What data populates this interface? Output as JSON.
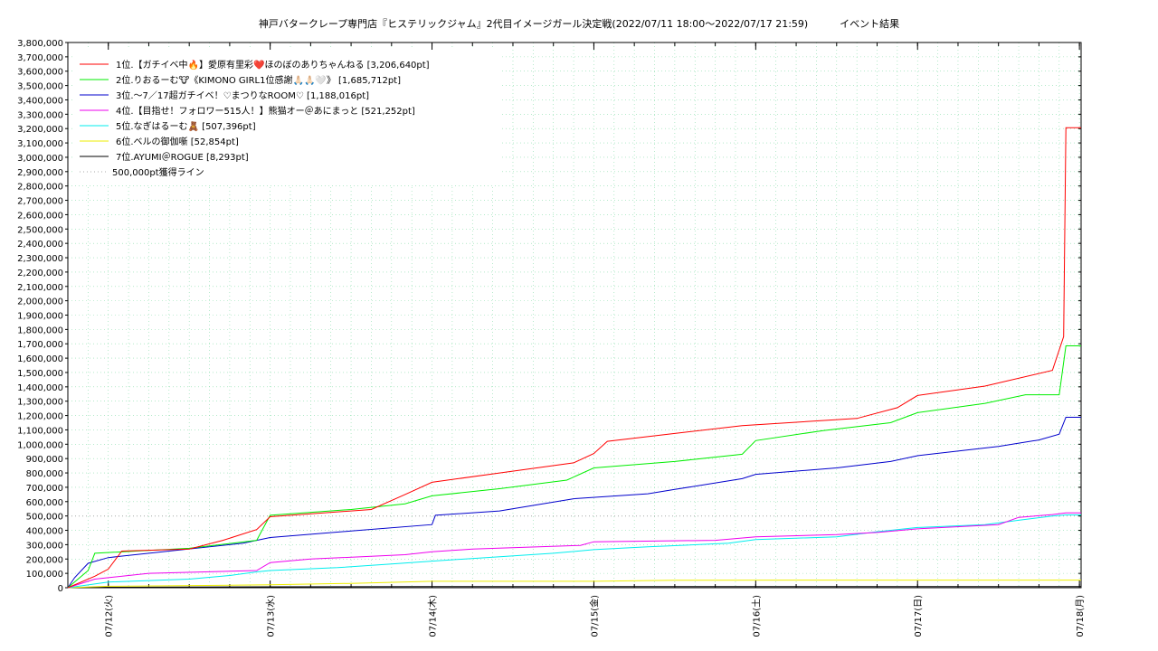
{
  "chart_data": {
    "type": "line",
    "title": "神戸バタークレープ専門店『ヒステリックジャム』2代目イメージガール決定戦(2022/07/11 18:00～2022/07/17 21:59)          イベント結果",
    "xlabel": "",
    "ylabel": "",
    "x_range": [
      "2022/07/11 18:00",
      "2022/07/18 00:15"
    ],
    "ylim": [
      0,
      3800000
    ],
    "yticks": [
      0,
      100000,
      200000,
      300000,
      400000,
      500000,
      600000,
      700000,
      800000,
      900000,
      1000000,
      1100000,
      1200000,
      1300000,
      1400000,
      1500000,
      1600000,
      1700000,
      1800000,
      1900000,
      2000000,
      2100000,
      2200000,
      2300000,
      2400000,
      2500000,
      2600000,
      2700000,
      2800000,
      2900000,
      3000000,
      3100000,
      3200000,
      3300000,
      3400000,
      3500000,
      3600000,
      3700000,
      3800000
    ],
    "ytick_labels": [
      "0",
      "100,000",
      "200,000",
      "300,000",
      "400,000",
      "500,000",
      "600,000",
      "700,000",
      "800,000",
      "900,000",
      "1,000,000",
      "1,100,000",
      "1,200,000",
      "1,300,000",
      "1,400,000",
      "1,500,000",
      "1,600,000",
      "1,700,000",
      "1,800,000",
      "1,900,000",
      "2,000,000",
      "2,100,000",
      "2,200,000",
      "2,300,000",
      "2,400,000",
      "2,500,000",
      "2,600,000",
      "2,700,000",
      "2,800,000",
      "2,900,000",
      "3,000,000",
      "3,100,000",
      "3,200,000",
      "3,300,000",
      "3,400,000",
      "3,500,000",
      "3,600,000",
      "3,700,000",
      "3,800,000"
    ],
    "xticks": [
      "2022/07/12 00:00",
      "2022/07/13 00:00",
      "2022/07/14 00:00",
      "2022/07/15 00:00",
      "2022/07/16 00:00",
      "2022/07/17 00:00",
      "2022/07/18 00:00"
    ],
    "xtick_labels": [
      "07/12(火)",
      "07/13(水)",
      "07/14(木)",
      "07/15(金)",
      "07/16(土)",
      "07/17(日)",
      "07/18(月)"
    ],
    "grid": true,
    "legend_position": "top-left",
    "series": [
      {
        "name": "1位.【ガチイベ中🔥】愛原有里彩❤️ほのぼのありちゃんねる [3,206,640pt]",
        "color": "#ff0000",
        "points": [
          [
            "2022/07/11 18:00",
            0
          ],
          [
            "2022/07/11 22:00",
            80000
          ],
          [
            "2022/07/12 00:00",
            130000
          ],
          [
            "2022/07/12 02:00",
            255000
          ],
          [
            "2022/07/12 12:00",
            270000
          ],
          [
            "2022/07/12 17:00",
            330000
          ],
          [
            "2022/07/12 22:00",
            405000
          ],
          [
            "2022/07/13 00:00",
            495000
          ],
          [
            "2022/07/13 15:00",
            545000
          ],
          [
            "2022/07/13 20:00",
            650000
          ],
          [
            "2022/07/14 00:00",
            735000
          ],
          [
            "2022/07/14 10:00",
            800000
          ],
          [
            "2022/07/14 21:00",
            870000
          ],
          [
            "2022/07/15 00:00",
            935000
          ],
          [
            "2022/07/15 02:00",
            1020000
          ],
          [
            "2022/07/15 12:00",
            1075000
          ],
          [
            "2022/07/15 22:00",
            1130000
          ],
          [
            "2022/07/16 15:00",
            1180000
          ],
          [
            "2022/07/16 21:00",
            1255000
          ],
          [
            "2022/07/17 00:00",
            1340000
          ],
          [
            "2022/07/17 10:00",
            1405000
          ],
          [
            "2022/07/17 20:00",
            1515000
          ],
          [
            "2022/07/17 21:40",
            1750000
          ],
          [
            "2022/07/17 22:00",
            3206640
          ],
          [
            "2022/07/18 00:15",
            3206640
          ]
        ]
      },
      {
        "name": "2位.りおるーむ🐮《KIMONO GIRL1位感謝🙏🏻🙏🏻🤍》 [1,685,712pt]",
        "color": "#00ee00",
        "points": [
          [
            "2022/07/11 18:00",
            0
          ],
          [
            "2022/07/11 21:00",
            120000
          ],
          [
            "2022/07/11 22:00",
            240000
          ],
          [
            "2022/07/12 12:00",
            275000
          ],
          [
            "2022/07/12 22:00",
            330000
          ],
          [
            "2022/07/13 00:00",
            505000
          ],
          [
            "2022/07/13 12:00",
            545000
          ],
          [
            "2022/07/13 20:00",
            585000
          ],
          [
            "2022/07/14 00:00",
            640000
          ],
          [
            "2022/07/14 10:00",
            690000
          ],
          [
            "2022/07/14 20:00",
            750000
          ],
          [
            "2022/07/15 00:00",
            835000
          ],
          [
            "2022/07/15 12:00",
            880000
          ],
          [
            "2022/07/15 22:00",
            930000
          ],
          [
            "2022/07/16 00:00",
            1025000
          ],
          [
            "2022/07/16 10:00",
            1095000
          ],
          [
            "2022/07/16 20:00",
            1150000
          ],
          [
            "2022/07/17 00:00",
            1220000
          ],
          [
            "2022/07/17 10:00",
            1285000
          ],
          [
            "2022/07/17 16:00",
            1345000
          ],
          [
            "2022/07/17 21:00",
            1345000
          ],
          [
            "2022/07/17 22:00",
            1685712
          ],
          [
            "2022/07/18 00:15",
            1685712
          ]
        ]
      },
      {
        "name": "3位.～7／17超ガチイベ！♡まつりなROOM♡ [1,188,016pt]",
        "color": "#0000cc",
        "points": [
          [
            "2022/07/11 18:00",
            0
          ],
          [
            "2022/07/11 19:00",
            70000
          ],
          [
            "2022/07/11 21:00",
            170000
          ],
          [
            "2022/07/12 00:00",
            210000
          ],
          [
            "2022/07/12 06:00",
            240000
          ],
          [
            "2022/07/12 20:00",
            310000
          ],
          [
            "2022/07/13 00:00",
            350000
          ],
          [
            "2022/07/13 12:00",
            395000
          ],
          [
            "2022/07/14 00:00",
            440000
          ],
          [
            "2022/07/14 00:30",
            505000
          ],
          [
            "2022/07/14 10:00",
            535000
          ],
          [
            "2022/07/14 21:00",
            620000
          ],
          [
            "2022/07/15 08:00",
            655000
          ],
          [
            "2022/07/15 12:00",
            685000
          ],
          [
            "2022/07/15 22:00",
            760000
          ],
          [
            "2022/07/16 00:00",
            790000
          ],
          [
            "2022/07/16 12:00",
            835000
          ],
          [
            "2022/07/16 20:00",
            880000
          ],
          [
            "2022/07/17 00:00",
            920000
          ],
          [
            "2022/07/17 12:00",
            985000
          ],
          [
            "2022/07/17 18:00",
            1030000
          ],
          [
            "2022/07/17 21:00",
            1070000
          ],
          [
            "2022/07/17 22:00",
            1188016
          ],
          [
            "2022/07/18 00:15",
            1188016
          ]
        ]
      },
      {
        "name": "4位.【目指せ！フォロワー515人！】熊猫オー＠あにまっと [521,252pt]",
        "color": "#ee00ee",
        "points": [
          [
            "2022/07/11 18:00",
            0
          ],
          [
            "2022/07/11 22:00",
            60000
          ],
          [
            "2022/07/12 00:00",
            70000
          ],
          [
            "2022/07/12 06:00",
            100000
          ],
          [
            "2022/07/12 22:00",
            120000
          ],
          [
            "2022/07/13 00:00",
            175000
          ],
          [
            "2022/07/13 06:00",
            200000
          ],
          [
            "2022/07/13 20:00",
            230000
          ],
          [
            "2022/07/14 00:00",
            250000
          ],
          [
            "2022/07/14 06:00",
            270000
          ],
          [
            "2022/07/14 22:00",
            295000
          ],
          [
            "2022/07/15 00:00",
            320000
          ],
          [
            "2022/07/15 18:00",
            330000
          ],
          [
            "2022/07/16 00:00",
            355000
          ],
          [
            "2022/07/16 12:00",
            370000
          ],
          [
            "2022/07/16 18:00",
            385000
          ],
          [
            "2022/07/17 00:00",
            410000
          ],
          [
            "2022/07/17 12:00",
            440000
          ],
          [
            "2022/07/17 15:00",
            490000
          ],
          [
            "2022/07/17 20:00",
            510000
          ],
          [
            "2022/07/17 22:00",
            521252
          ],
          [
            "2022/07/18 00:15",
            521252
          ]
        ]
      },
      {
        "name": "5位.なぎはるーむ🧸 [507,396pt]",
        "color": "#00eeee",
        "points": [
          [
            "2022/07/11 18:00",
            0
          ],
          [
            "2022/07/12 00:00",
            40000
          ],
          [
            "2022/07/12 12:00",
            60000
          ],
          [
            "2022/07/12 18:00",
            85000
          ],
          [
            "2022/07/12 22:00",
            110000
          ],
          [
            "2022/07/13 00:00",
            120000
          ],
          [
            "2022/07/13 10:00",
            140000
          ],
          [
            "2022/07/13 18:00",
            165000
          ],
          [
            "2022/07/14 00:00",
            185000
          ],
          [
            "2022/07/14 08:00",
            210000
          ],
          [
            "2022/07/14 18:00",
            240000
          ],
          [
            "2022/07/15 00:00",
            265000
          ],
          [
            "2022/07/15 08:00",
            285000
          ],
          [
            "2022/07/15 20:00",
            310000
          ],
          [
            "2022/07/16 00:00",
            335000
          ],
          [
            "2022/07/16 12:00",
            355000
          ],
          [
            "2022/07/16 18:00",
            390000
          ],
          [
            "2022/07/17 00:00",
            420000
          ],
          [
            "2022/07/17 10:00",
            440000
          ],
          [
            "2022/07/17 15:00",
            470000
          ],
          [
            "2022/07/17 20:00",
            500000
          ],
          [
            "2022/07/17 22:00",
            507396
          ],
          [
            "2022/07/18 00:15",
            507396
          ]
        ]
      },
      {
        "name": "6位.ベルの御伽噺 [52,854pt]",
        "color": "#eeee00",
        "points": [
          [
            "2022/07/11 18:00",
            0
          ],
          [
            "2022/07/12 00:00",
            10000
          ],
          [
            "2022/07/13 00:00",
            20000
          ],
          [
            "2022/07/13 12:00",
            30000
          ],
          [
            "2022/07/14 00:00",
            45000
          ],
          [
            "2022/07/15 00:00",
            45000
          ],
          [
            "2022/07/15 12:00",
            52000
          ],
          [
            "2022/07/18 00:15",
            52854
          ]
        ]
      },
      {
        "name": "7位.AYUMI＠ROGUE [8,293pt]",
        "color": "#000000",
        "points": [
          [
            "2022/07/11 18:00",
            0
          ],
          [
            "2022/07/12 00:00",
            3000
          ],
          [
            "2022/07/13 00:00",
            6000
          ],
          [
            "2022/07/14 00:00",
            8293
          ],
          [
            "2022/07/18 00:15",
            8293
          ]
        ]
      },
      {
        "name": "500,000pt獲得ライン",
        "color": "#aaaaaa",
        "dotted": true,
        "points": [
          [
            "2022/07/11 18:00",
            500000
          ],
          [
            "2022/07/18 00:15",
            500000
          ]
        ]
      }
    ]
  }
}
